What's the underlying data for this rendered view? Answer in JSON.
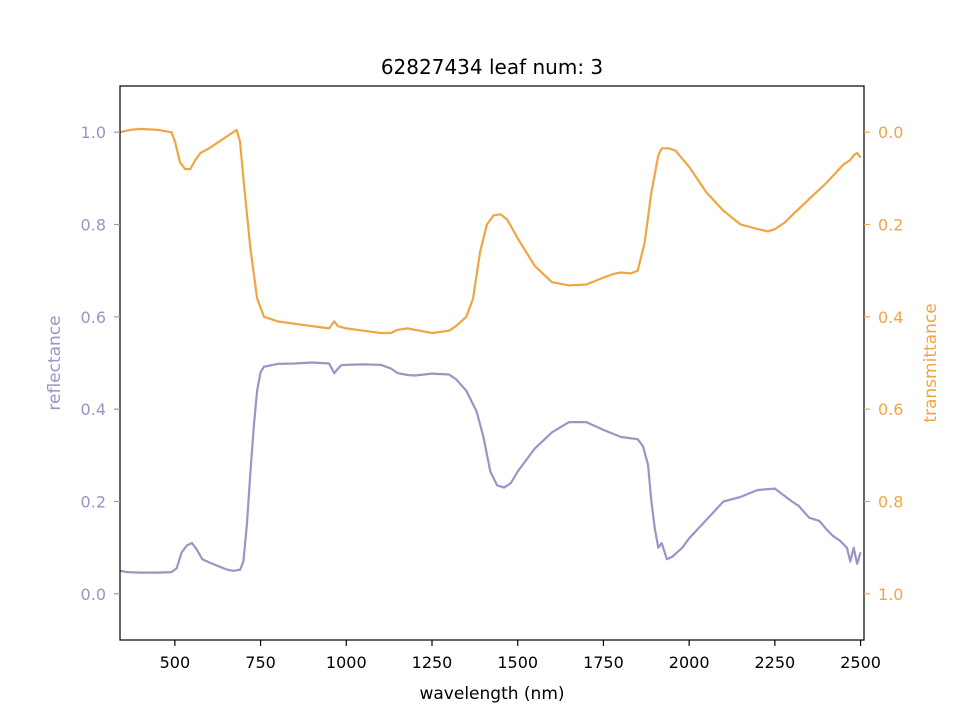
{
  "chart_data": {
    "type": "line",
    "title": "62827434 leaf num: 3",
    "xlabel": "wavelength (nm)",
    "ylabel_left": "reflectance",
    "ylabel_right": "transmittance",
    "xlim": [
      340,
      2510
    ],
    "ylim_left": [
      -0.1,
      1.1
    ],
    "ylim_right": [
      1.1,
      -0.1
    ],
    "right_axis_inverted": true,
    "grid": false,
    "x_ticks": [
      500,
      750,
      1000,
      1250,
      1500,
      1750,
      2000,
      2250,
      2500
    ],
    "x_tick_labels": [
      "500",
      "750",
      "1000",
      "1250",
      "1500",
      "1750",
      "2000",
      "2250",
      "2500"
    ],
    "y_left_ticks": [
      0.0,
      0.2,
      0.4,
      0.6,
      0.8,
      1.0
    ],
    "y_left_tick_labels": [
      "0.0",
      "0.2",
      "0.4",
      "0.6",
      "0.8",
      "1.0"
    ],
    "y_right_ticks": [
      0.0,
      0.2,
      0.4,
      0.6,
      0.8,
      1.0
    ],
    "y_right_tick_labels": [
      "0.0",
      "0.2",
      "0.4",
      "0.6",
      "0.8",
      "1.0"
    ],
    "colors": {
      "reflectance": "#9a95c5",
      "transmittance": "#f0a544",
      "axes": "#000000"
    },
    "series": [
      {
        "name": "reflectance",
        "axis": "left",
        "x": [
          340,
          360,
          400,
          450,
          490,
          505,
          520,
          535,
          550,
          565,
          580,
          600,
          620,
          650,
          670,
          690,
          700,
          710,
          720,
          730,
          740,
          750,
          760,
          780,
          800,
          850,
          900,
          950,
          965,
          975,
          985,
          1000,
          1050,
          1100,
          1130,
          1150,
          1180,
          1200,
          1250,
          1300,
          1320,
          1350,
          1380,
          1400,
          1420,
          1440,
          1460,
          1480,
          1500,
          1550,
          1600,
          1650,
          1700,
          1750,
          1800,
          1850,
          1865,
          1880,
          1890,
          1900,
          1910,
          1920,
          1935,
          1950,
          1980,
          2000,
          2050,
          2100,
          2150,
          2200,
          2250,
          2300,
          2320,
          2350,
          2380,
          2400,
          2420,
          2440,
          2460,
          2470,
          2480,
          2490,
          2500
        ],
        "y": [
          0.05,
          0.047,
          0.046,
          0.046,
          0.047,
          0.055,
          0.09,
          0.105,
          0.11,
          0.095,
          0.075,
          0.068,
          0.062,
          0.053,
          0.05,
          0.052,
          0.07,
          0.15,
          0.26,
          0.36,
          0.44,
          0.48,
          0.492,
          0.495,
          0.498,
          0.499,
          0.501,
          0.499,
          0.478,
          0.487,
          0.495,
          0.496,
          0.497,
          0.496,
          0.488,
          0.478,
          0.474,
          0.473,
          0.477,
          0.475,
          0.465,
          0.44,
          0.395,
          0.34,
          0.265,
          0.235,
          0.23,
          0.24,
          0.265,
          0.315,
          0.35,
          0.372,
          0.372,
          0.355,
          0.34,
          0.335,
          0.32,
          0.28,
          0.2,
          0.14,
          0.1,
          0.11,
          0.075,
          0.08,
          0.1,
          0.12,
          0.16,
          0.2,
          0.21,
          0.225,
          0.228,
          0.2,
          0.19,
          0.165,
          0.158,
          0.14,
          0.125,
          0.115,
          0.1,
          0.07,
          0.1,
          0.065,
          0.09
        ]
      },
      {
        "name": "transmittance",
        "axis": "right",
        "x": [
          340,
          370,
          400,
          450,
          490,
          500,
          515,
          530,
          545,
          560,
          575,
          600,
          630,
          660,
          680,
          690,
          700,
          720,
          740,
          760,
          780,
          800,
          850,
          900,
          950,
          965,
          975,
          1000,
          1050,
          1100,
          1130,
          1150,
          1180,
          1200,
          1250,
          1300,
          1320,
          1350,
          1370,
          1390,
          1410,
          1430,
          1450,
          1470,
          1500,
          1550,
          1600,
          1650,
          1700,
          1750,
          1780,
          1800,
          1830,
          1850,
          1870,
          1890,
          1900,
          1910,
          1920,
          1940,
          1960,
          2000,
          2050,
          2100,
          2150,
          2200,
          2230,
          2250,
          2280,
          2300,
          2350,
          2400,
          2450,
          2470,
          2480,
          2490,
          2500
        ],
        "y": [
          0.0,
          -0.005,
          -0.007,
          -0.005,
          0.0,
          0.02,
          0.065,
          0.08,
          0.08,
          0.06,
          0.045,
          0.035,
          0.02,
          0.005,
          -0.005,
          0.02,
          0.1,
          0.25,
          0.36,
          0.4,
          0.405,
          0.41,
          0.415,
          0.42,
          0.425,
          0.41,
          0.42,
          0.425,
          0.43,
          0.435,
          0.435,
          0.428,
          0.425,
          0.428,
          0.435,
          0.43,
          0.42,
          0.4,
          0.36,
          0.26,
          0.2,
          0.18,
          0.178,
          0.19,
          0.23,
          0.29,
          0.325,
          0.332,
          0.33,
          0.315,
          0.307,
          0.304,
          0.306,
          0.3,
          0.24,
          0.13,
          0.09,
          0.05,
          0.035,
          0.035,
          0.04,
          0.075,
          0.13,
          0.17,
          0.2,
          0.21,
          0.215,
          0.21,
          0.195,
          0.18,
          0.145,
          0.11,
          0.07,
          0.06,
          0.05,
          0.045,
          0.055
        ]
      }
    ]
  }
}
